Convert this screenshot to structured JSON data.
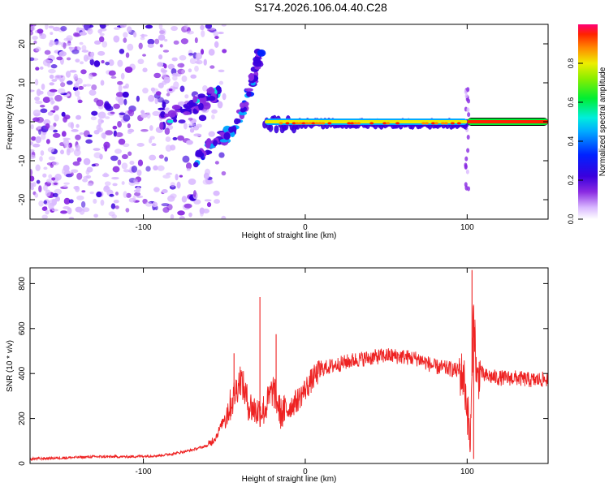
{
  "title": "S174.2026.106.04.40.C28",
  "colors": {
    "series": "#ee2222",
    "axis": "#000000"
  },
  "chart_data": [
    {
      "type": "heatmap",
      "title": "S174.2026.106.04.40.C28",
      "xlabel": "Height of straight line (km)",
      "ylabel": "Frequency (Hz)",
      "xlim": [
        -170,
        150
      ],
      "ylim": [
        -25,
        25
      ],
      "xticks": [
        -100,
        0,
        100
      ],
      "xtick_labels": [
        "-100",
        "0",
        "100"
      ],
      "yticks": [
        20,
        10,
        0,
        -10,
        -20
      ],
      "ytick_labels": [
        "20",
        "10",
        "0",
        "-10",
        "-20"
      ],
      "colorbar": {
        "label": "Normalized spectral amplitude",
        "range": [
          0,
          1
        ],
        "ticks": [
          0.0,
          0.2,
          0.4,
          0.6,
          0.8
        ],
        "tick_labels": [
          "0.0",
          "0.2",
          "0.4",
          "0.6",
          "0.8"
        ]
      },
      "features": [
        {
          "name": "diffuse noise",
          "x_range": [
            -170,
            -70
          ],
          "y_range": [
            -25,
            25
          ],
          "amplitude": 0.15
        },
        {
          "name": "rising ridge 1",
          "points": [
            [
              -90,
              0
            ],
            [
              -75,
              3
            ],
            [
              -60,
              6
            ],
            [
              -52,
              8
            ]
          ]
        },
        {
          "name": "descending arc",
          "points": [
            [
              -68,
              -10
            ],
            [
              -58,
              -6
            ],
            [
              -47,
              -3
            ],
            [
              -38,
              3
            ],
            [
              -32,
              12
            ],
            [
              -28,
              17
            ]
          ]
        },
        {
          "name": "narrowband line",
          "x_range": [
            -25,
            150
          ],
          "frequency": 0,
          "amplitude": 0.95
        },
        {
          "name": "vertical spike",
          "x": 100,
          "y_range": [
            -18,
            10
          ]
        }
      ]
    },
    {
      "type": "line",
      "xlabel": "Height of straight line (km)",
      "ylabel": "SNR (10 * v/v)",
      "xlim": [
        -170,
        150
      ],
      "ylim": [
        0,
        870
      ],
      "xticks": [
        -100,
        0,
        100
      ],
      "xtick_labels": [
        "-100",
        "0",
        "100"
      ],
      "yticks": [
        0,
        200,
        400,
        600,
        800
      ],
      "ytick_labels": [
        "0",
        "200",
        "400",
        "600",
        "800"
      ],
      "series": [
        {
          "name": "SNR",
          "x": [
            -170,
            -150,
            -130,
            -110,
            -90,
            -80,
            -70,
            -60,
            -55,
            -50,
            -45,
            -40,
            -35,
            -30,
            -25,
            -20,
            -15,
            -10,
            -5,
            0,
            5,
            10,
            20,
            30,
            40,
            50,
            60,
            70,
            80,
            90,
            95,
            98,
            100,
            102,
            104,
            106,
            108,
            110,
            120,
            130,
            140,
            150
          ],
          "values": [
            20,
            25,
            30,
            30,
            35,
            45,
            60,
            80,
            120,
            200,
            280,
            380,
            260,
            230,
            240,
            330,
            220,
            250,
            280,
            330,
            380,
            420,
            440,
            460,
            470,
            480,
            475,
            465,
            430,
            420,
            410,
            380,
            250,
            80,
            700,
            350,
            420,
            390,
            380,
            380,
            370,
            375
          ]
        }
      ],
      "peaks": [
        {
          "x": -44,
          "y": 490
        },
        {
          "x": -28,
          "y": 740
        },
        {
          "x": -18,
          "y": 575
        },
        {
          "x": 103,
          "y": 860
        },
        {
          "x": 104,
          "y": 20
        }
      ]
    }
  ]
}
